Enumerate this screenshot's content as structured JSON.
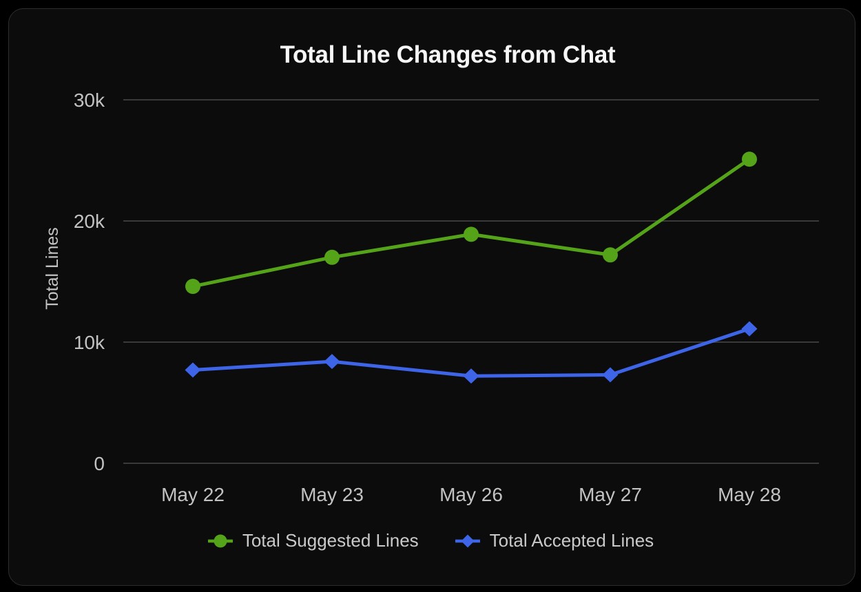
{
  "chart_data": {
    "type": "line",
    "title": "Total Line Changes from Chat",
    "xlabel": "",
    "ylabel": "Total Lines",
    "categories": [
      "May 22",
      "May 23",
      "May 26",
      "May 27",
      "May 28"
    ],
    "series": [
      {
        "name": "Total Suggested Lines",
        "color": "#55a318",
        "marker": "circle",
        "values": [
          14600,
          17000,
          18900,
          17200,
          25100
        ]
      },
      {
        "name": "Total Accepted Lines",
        "color": "#3e64e8",
        "marker": "diamond",
        "values": [
          7700,
          8400,
          7200,
          7300,
          11100
        ]
      }
    ],
    "ylim": [
      0,
      30000
    ],
    "yticks": [
      {
        "value": 0,
        "label": "0"
      },
      {
        "value": 10000,
        "label": "10k"
      },
      {
        "value": 20000,
        "label": "20k"
      },
      {
        "value": 30000,
        "label": "30k"
      }
    ],
    "grid": true,
    "legend_position": "bottom"
  },
  "colors": {
    "background": "#000000",
    "card_background": "#0c0c0c",
    "card_border": "#2d2d2d",
    "gridline": "#3a3a3a",
    "tick_label": "#c2c2c2",
    "legend_label": "#c9c9c9",
    "title": "#f7f7f7"
  }
}
